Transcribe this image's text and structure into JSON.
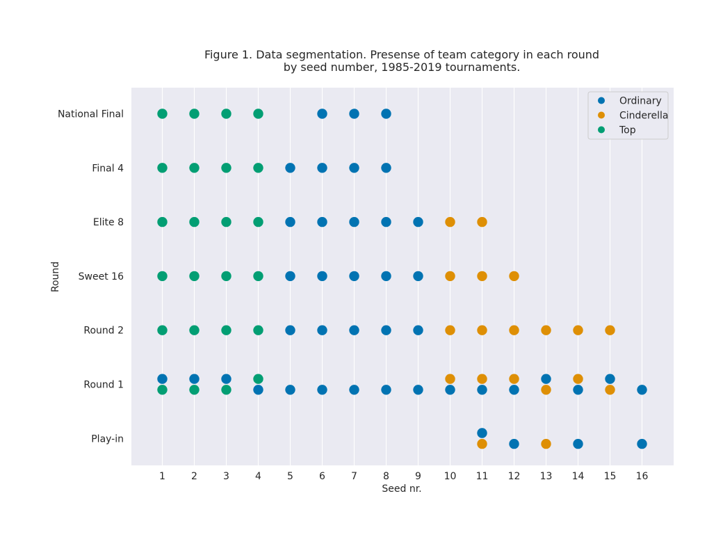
{
  "chart_data": {
    "type": "scatter",
    "title": "Figure 1. Data segmentation. Presense of team category in each round",
    "subtitle": "by seed number, 1985-2019 tournaments.",
    "xlabel": "Seed nr.",
    "ylabel": "Round",
    "x_ticks": [
      1,
      2,
      3,
      4,
      5,
      6,
      7,
      8,
      9,
      10,
      11,
      12,
      13,
      14,
      15,
      16
    ],
    "xlim": [
      0,
      17
    ],
    "rounds": [
      "National Final",
      "Final 4",
      "Elite 8",
      "Sweet 16",
      "Round 2",
      "Round 1",
      "Play-in"
    ],
    "grid": "vertical",
    "legend_position": "top-right",
    "colors": {
      "background": "#eaeaf2",
      "grid": "#ffffff",
      "Ordinary": "#0173b2",
      "Cinderella": "#de8f05",
      "Top": "#029e73"
    },
    "series": [
      {
        "name": "Ordinary",
        "points": [
          {
            "x": 6,
            "y": "National Final"
          },
          {
            "x": 7,
            "y": "National Final"
          },
          {
            "x": 8,
            "y": "National Final"
          },
          {
            "x": 5,
            "y": "Final 4"
          },
          {
            "x": 6,
            "y": "Final 4"
          },
          {
            "x": 7,
            "y": "Final 4"
          },
          {
            "x": 8,
            "y": "Final 4"
          },
          {
            "x": 5,
            "y": "Elite 8"
          },
          {
            "x": 6,
            "y": "Elite 8"
          },
          {
            "x": 7,
            "y": "Elite 8"
          },
          {
            "x": 8,
            "y": "Elite 8"
          },
          {
            "x": 9,
            "y": "Elite 8"
          },
          {
            "x": 5,
            "y": "Sweet 16"
          },
          {
            "x": 6,
            "y": "Sweet 16"
          },
          {
            "x": 7,
            "y": "Sweet 16"
          },
          {
            "x": 8,
            "y": "Sweet 16"
          },
          {
            "x": 9,
            "y": "Sweet 16"
          },
          {
            "x": 5,
            "y": "Round 2"
          },
          {
            "x": 6,
            "y": "Round 2"
          },
          {
            "x": 7,
            "y": "Round 2"
          },
          {
            "x": 8,
            "y": "Round 2"
          },
          {
            "x": 9,
            "y": "Round 2"
          },
          {
            "x": 1,
            "y": "Round 1",
            "jitter": "up"
          },
          {
            "x": 2,
            "y": "Round 1",
            "jitter": "up"
          },
          {
            "x": 3,
            "y": "Round 1",
            "jitter": "up"
          },
          {
            "x": 13,
            "y": "Round 1",
            "jitter": "up"
          },
          {
            "x": 15,
            "y": "Round 1",
            "jitter": "up"
          },
          {
            "x": 4,
            "y": "Round 1",
            "jitter": "down"
          },
          {
            "x": 5,
            "y": "Round 1",
            "jitter": "down"
          },
          {
            "x": 6,
            "y": "Round 1",
            "jitter": "down"
          },
          {
            "x": 7,
            "y": "Round 1",
            "jitter": "down"
          },
          {
            "x": 8,
            "y": "Round 1",
            "jitter": "down"
          },
          {
            "x": 9,
            "y": "Round 1",
            "jitter": "down"
          },
          {
            "x": 10,
            "y": "Round 1",
            "jitter": "down"
          },
          {
            "x": 11,
            "y": "Round 1",
            "jitter": "down"
          },
          {
            "x": 12,
            "y": "Round 1",
            "jitter": "down"
          },
          {
            "x": 14,
            "y": "Round 1",
            "jitter": "down"
          },
          {
            "x": 16,
            "y": "Round 1",
            "jitter": "down"
          },
          {
            "x": 11,
            "y": "Play-in",
            "jitter": "up"
          },
          {
            "x": 12,
            "y": "Play-in",
            "jitter": "down"
          },
          {
            "x": 14,
            "y": "Play-in",
            "jitter": "down"
          },
          {
            "x": 16,
            "y": "Play-in",
            "jitter": "down"
          }
        ]
      },
      {
        "name": "Cinderella",
        "points": [
          {
            "x": 10,
            "y": "Elite 8"
          },
          {
            "x": 11,
            "y": "Elite 8"
          },
          {
            "x": 10,
            "y": "Sweet 16"
          },
          {
            "x": 11,
            "y": "Sweet 16"
          },
          {
            "x": 12,
            "y": "Sweet 16"
          },
          {
            "x": 10,
            "y": "Round 2"
          },
          {
            "x": 11,
            "y": "Round 2"
          },
          {
            "x": 12,
            "y": "Round 2"
          },
          {
            "x": 13,
            "y": "Round 2"
          },
          {
            "x": 14,
            "y": "Round 2"
          },
          {
            "x": 15,
            "y": "Round 2"
          },
          {
            "x": 10,
            "y": "Round 1",
            "jitter": "up"
          },
          {
            "x": 11,
            "y": "Round 1",
            "jitter": "up"
          },
          {
            "x": 12,
            "y": "Round 1",
            "jitter": "up"
          },
          {
            "x": 14,
            "y": "Round 1",
            "jitter": "up"
          },
          {
            "x": 13,
            "y": "Round 1",
            "jitter": "down"
          },
          {
            "x": 15,
            "y": "Round 1",
            "jitter": "down"
          },
          {
            "x": 11,
            "y": "Play-in",
            "jitter": "down"
          },
          {
            "x": 13,
            "y": "Play-in",
            "jitter": "down"
          }
        ]
      },
      {
        "name": "Top",
        "points": [
          {
            "x": 1,
            "y": "National Final"
          },
          {
            "x": 2,
            "y": "National Final"
          },
          {
            "x": 3,
            "y": "National Final"
          },
          {
            "x": 4,
            "y": "National Final"
          },
          {
            "x": 1,
            "y": "Final 4"
          },
          {
            "x": 2,
            "y": "Final 4"
          },
          {
            "x": 3,
            "y": "Final 4"
          },
          {
            "x": 4,
            "y": "Final 4"
          },
          {
            "x": 1,
            "y": "Elite 8"
          },
          {
            "x": 2,
            "y": "Elite 8"
          },
          {
            "x": 3,
            "y": "Elite 8"
          },
          {
            "x": 4,
            "y": "Elite 8"
          },
          {
            "x": 1,
            "y": "Sweet 16"
          },
          {
            "x": 2,
            "y": "Sweet 16"
          },
          {
            "x": 3,
            "y": "Sweet 16"
          },
          {
            "x": 4,
            "y": "Sweet 16"
          },
          {
            "x": 1,
            "y": "Round 2"
          },
          {
            "x": 2,
            "y": "Round 2"
          },
          {
            "x": 3,
            "y": "Round 2"
          },
          {
            "x": 4,
            "y": "Round 2"
          },
          {
            "x": 4,
            "y": "Round 1",
            "jitter": "up"
          },
          {
            "x": 1,
            "y": "Round 1",
            "jitter": "down"
          },
          {
            "x": 2,
            "y": "Round 1",
            "jitter": "down"
          },
          {
            "x": 3,
            "y": "Round 1",
            "jitter": "down"
          }
        ]
      }
    ]
  }
}
